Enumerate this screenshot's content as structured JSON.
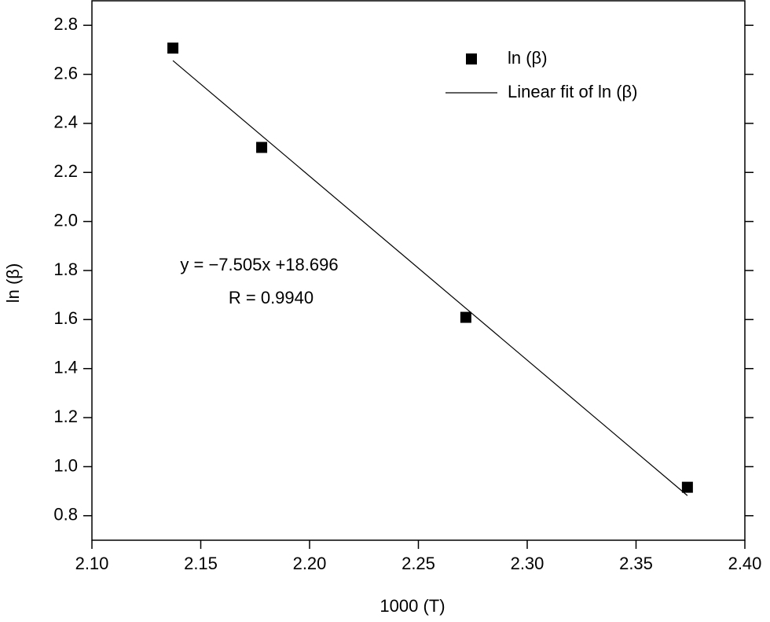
{
  "chart_data": {
    "type": "scatter",
    "x_label": "1000 (T)",
    "y_label": "ln (β)",
    "xlim": [
      2.1,
      2.4
    ],
    "xticks": [
      {
        "value": 2.1,
        "label": "2.10"
      },
      2.15,
      {
        "value": 2.2,
        "label": "2.20"
      },
      2.25,
      {
        "value": 2.3,
        "label": "2.30"
      },
      2.35,
      {
        "value": 2.4,
        "label": "2.40"
      }
    ],
    "ylim": [
      0.7,
      2.9
    ],
    "yticks": [
      0.8,
      {
        "value": 1,
        "label": "1.0"
      },
      1.2,
      1.4,
      1.6,
      1.8,
      {
        "value": 2,
        "label": "2.0"
      },
      2.2,
      2.4,
      2.6,
      2.8
    ],
    "series": [
      {
        "name": "ln (β)",
        "style": "marker",
        "color": "#000000",
        "x": [
          2.1372,
          2.178,
          2.2718,
          2.3736
        ],
        "values": [
          2.707,
          2.302,
          1.609,
          0.916
        ]
      },
      {
        "name": "Linear fit of ln (β)",
        "style": "line",
        "color": "#000000",
        "x": [
          2.1372,
          2.3736
        ],
        "values": [
          2.656,
          0.882
        ]
      }
    ],
    "annotations": [
      "y = −7.505x +18.696",
      "R = 0.9940"
    ],
    "legend": "upper right"
  }
}
